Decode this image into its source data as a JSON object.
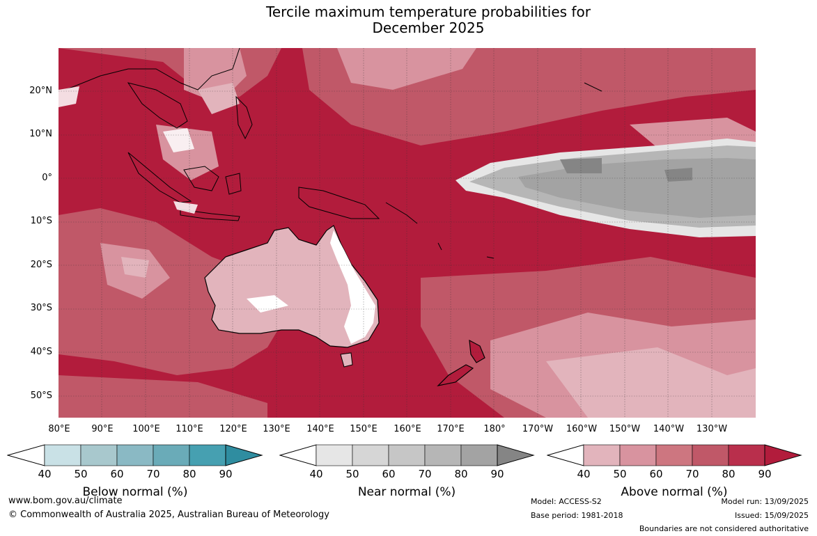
{
  "title": {
    "line1": "Tercile maximum temperature probabilities for",
    "line2": "December 2025"
  },
  "map": {
    "lat_labels": [
      "20°N",
      "10°N",
      "0°",
      "10°S",
      "20°S",
      "30°S",
      "40°S",
      "50°S"
    ],
    "lon_labels": [
      "80°E",
      "90°E",
      "100°E",
      "110°E",
      "120°E",
      "130°E",
      "140°E",
      "150°E",
      "160°E",
      "170°E",
      "180°",
      "170°W",
      "160°W",
      "150°W",
      "140°W",
      "130°W"
    ],
    "background_color": "#b21c3c",
    "near_normal_color": "#a2a2a2",
    "coast_color": "#000000"
  },
  "colorbars": [
    {
      "name": "below",
      "title": "Below normal (%)",
      "ticks": [
        "40",
        "50",
        "60",
        "70",
        "80",
        "90"
      ],
      "colors": [
        "#ffffff",
        "#c9e1e6",
        "#a8c8cd",
        "#8ab9c4",
        "#6aabb8",
        "#46a0b1",
        "#2f8da0"
      ]
    },
    {
      "name": "near",
      "title": "Near normal (%)",
      "ticks": [
        "40",
        "50",
        "60",
        "70",
        "80",
        "90"
      ],
      "colors": [
        "#ffffff",
        "#e6e6e6",
        "#d6d6d6",
        "#c6c6c6",
        "#b6b6b6",
        "#a3a3a3",
        "#858585"
      ]
    },
    {
      "name": "above",
      "title": "Above normal (%)",
      "ticks": [
        "40",
        "50",
        "60",
        "70",
        "80",
        "90"
      ],
      "colors": [
        "#ffffff",
        "#e2b4bc",
        "#d8939f",
        "#cd7680",
        "#c05868",
        "#b92f4c",
        "#b21c3c"
      ]
    }
  ],
  "footer": {
    "website": "www.bom.gov.au/climate",
    "copyright": "© Commonwealth of Australia 2025, Australian Bureau of Meteorology",
    "model": "Model: ACCESS-S2",
    "base_period": "Base period: 1981-2018",
    "model_run": "Model run: 13/09/2025",
    "issued": "Issued: 15/09/2025",
    "disclaimer": "Boundaries are not considered authoritative"
  }
}
